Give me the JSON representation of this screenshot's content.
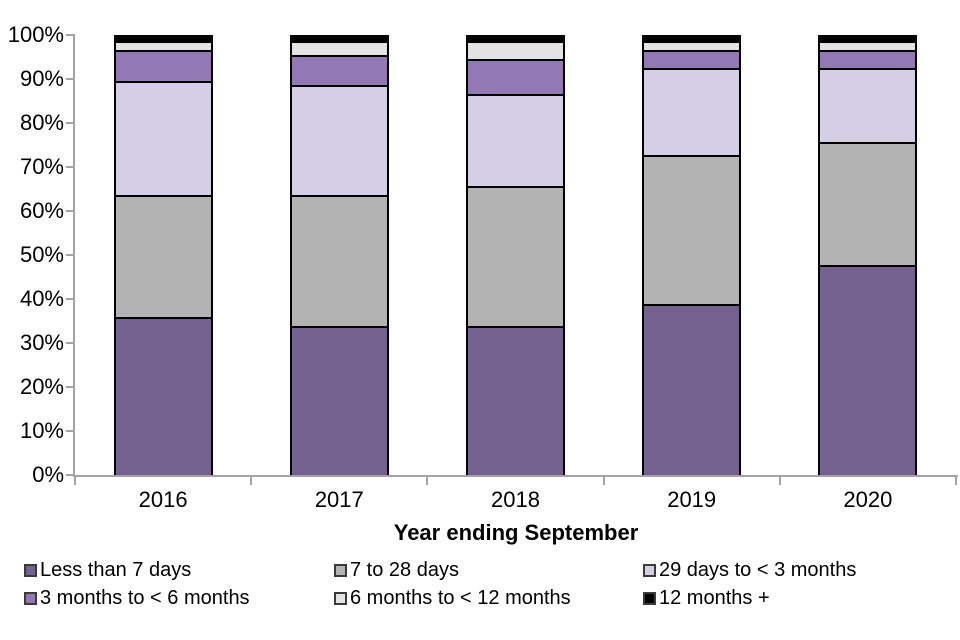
{
  "chart_data": {
    "type": "bar",
    "subtype": "stacked-100-percent",
    "title": "",
    "xlabel": "Year ending September",
    "ylabel": "",
    "ylim": [
      0,
      100
    ],
    "grid": false,
    "legend_position": "bottom",
    "y_tick_labels": [
      "100%",
      "90%",
      "80%",
      "70%",
      "60%",
      "50%",
      "40%",
      "30%",
      "20%",
      "10%",
      "0%"
    ],
    "categories": [
      "2016",
      "2017",
      "2018",
      "2019",
      "2020"
    ],
    "series": [
      {
        "name": "Less than 7 days",
        "color": "#75618f",
        "values": [
          36,
          34,
          34,
          39,
          48
        ]
      },
      {
        "name": "7 to 28 days",
        "color": "#b3b3b3",
        "values": [
          28,
          30,
          32,
          34,
          28
        ]
      },
      {
        "name": "29 days to < 3 months",
        "color": "#d5cfe6",
        "values": [
          26,
          25,
          21,
          20,
          17
        ]
      },
      {
        "name": "3 months to < 6 months",
        "color": "#9379b4",
        "values": [
          7,
          7,
          8,
          4,
          4
        ]
      },
      {
        "name": "6 months to < 12 months",
        "color": "#e3e3e3",
        "values": [
          2,
          3,
          4,
          2,
          2
        ]
      },
      {
        "name": "12 months +",
        "color": "#000000",
        "values": [
          1,
          1,
          1,
          1,
          1
        ]
      }
    ]
  },
  "colors": {
    "axis": "#a3a3a3",
    "bar_border": "#000000",
    "text": "#000000",
    "background": "#ffffff"
  },
  "layout_labels": {
    "legend_rows": 2,
    "legend_cols": 3
  }
}
